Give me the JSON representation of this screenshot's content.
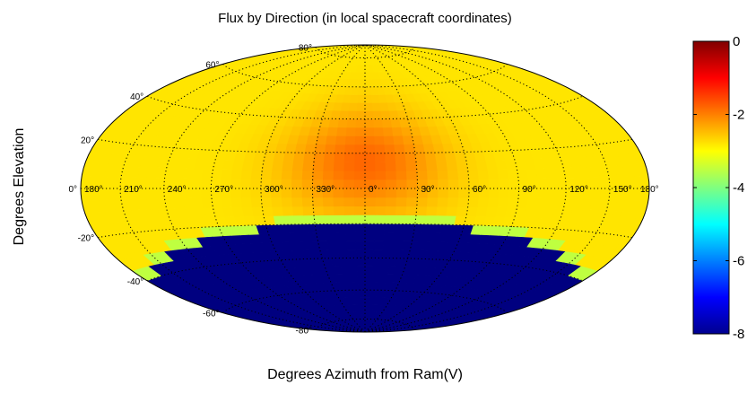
{
  "chart_data": {
    "type": "heatmap",
    "projection": "hammer-aitoff",
    "title": "Flux by Direction (in local spacecraft coordinates)",
    "xlabel": "Degrees Azimuth from Ram(V)",
    "ylabel": "Degrees Elevation",
    "azimuth_tick_labels": [
      "180°",
      "210°",
      "240°",
      "270°",
      "300°",
      "330°",
      "0°",
      "30°",
      "60°",
      "90°",
      "120°",
      "150°",
      "180°"
    ],
    "elevation_tick_labels": [
      "80°",
      "60°",
      "40°",
      "20°",
      "0°",
      "-20°",
      "-40°",
      "-60°",
      "-80°"
    ],
    "grid": true,
    "colorbar": {
      "position": "right",
      "range": [
        -8,
        0
      ],
      "tick_labels": [
        "0",
        "-2",
        "-4",
        "-6",
        "-8"
      ],
      "colormap": "jet"
    },
    "region_values": [
      {
        "region": "upper hemisphere edge",
        "value": -2.8
      },
      {
        "region": "upper hemisphere toward ram (azimuth 330°–30°, elevation 0°–40°)",
        "value": -1.8
      },
      {
        "region": "band near elevation -15° to -20°",
        "value": -3.5
      },
      {
        "region": "lower hemisphere below about -20° elevation",
        "value": -8
      }
    ]
  }
}
